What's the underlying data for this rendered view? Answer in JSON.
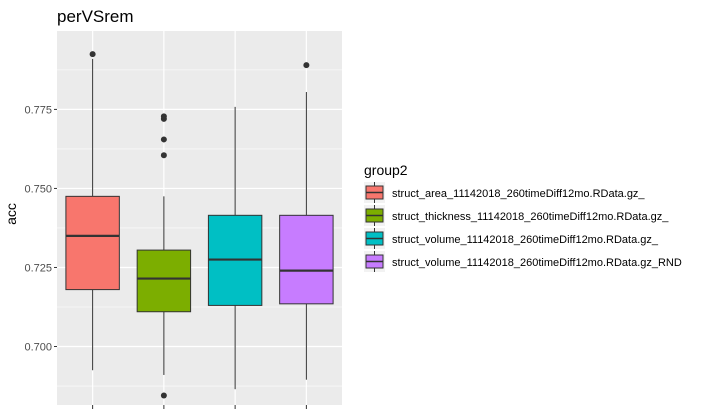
{
  "chart_data": {
    "type": "boxplot",
    "title": "perVSrem",
    "xlabel": "",
    "ylabel": "acc",
    "ylim": [
      0.6815,
      0.7998
    ],
    "yticks": [
      0.7,
      0.725,
      0.75,
      0.775
    ],
    "ytick_labels": [
      "0.700",
      "0.725",
      "0.750",
      "0.775"
    ],
    "grid": true,
    "legend": {
      "title": "group2",
      "placement": "right"
    },
    "series": [
      {
        "name": "struct_area_11142018_260timeDiff12mo.RData.gz_",
        "color": "#F8766D",
        "whisker_low": 0.6925,
        "q1": 0.718,
        "median": 0.735,
        "q3": 0.7475,
        "whisker_high": 0.791,
        "outliers": [
          0.7925
        ]
      },
      {
        "name": "struct_thickness_11142018_260timeDiff12mo.RData.gz_",
        "color": "#7CAE00",
        "whisker_low": 0.691,
        "q1": 0.711,
        "median": 0.7215,
        "q3": 0.7305,
        "whisker_high": 0.7475,
        "outliers": [
          0.6845,
          0.7605,
          0.7655,
          0.772,
          0.7728
        ]
      },
      {
        "name": "struct_volume_11142018_260timeDiff12mo.RData.gz_",
        "color": "#00BFC4",
        "whisker_low": 0.6865,
        "q1": 0.713,
        "median": 0.7275,
        "q3": 0.7415,
        "whisker_high": 0.7758,
        "outliers": []
      },
      {
        "name": "struct_volume_11142018_260timeDiff12mo.RData.gz_RND",
        "color": "#C77CFF",
        "whisker_low": 0.6895,
        "q1": 0.7135,
        "median": 0.724,
        "q3": 0.7415,
        "whisker_high": 0.7805,
        "outliers": [
          0.789
        ]
      }
    ]
  },
  "legend_colors": {
    "0": "#F8766D",
    "1": "#7CAE00",
    "2": "#00BFC4",
    "3": "#C77CFF"
  }
}
